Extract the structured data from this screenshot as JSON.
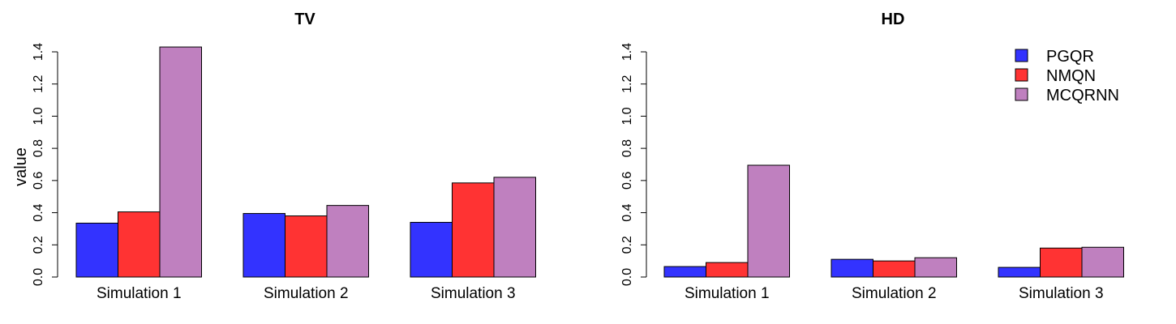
{
  "colors": {
    "PGQR": "#3333ff",
    "NMQN": "#ff3333",
    "MCQRNN": "#bf80bf"
  },
  "legend": {
    "placement": "top-right",
    "entries": [
      "PGQR",
      "NMQN",
      "MCQRNN"
    ]
  },
  "chart_data": [
    {
      "type": "bar",
      "title": "TV",
      "xlabel": "",
      "ylabel": "value",
      "ylim": [
        0,
        1.4
      ],
      "yticks": [
        "0.0",
        "0.2",
        "0.4",
        "0.6",
        "0.8",
        "1.0",
        "1.2",
        "1.4"
      ],
      "categories": [
        "Simulation 1",
        "Simulation 2",
        "Simulation 3"
      ],
      "series": [
        {
          "name": "PGQR",
          "values": [
            0.335,
            0.395,
            0.34
          ]
        },
        {
          "name": "NMQN",
          "values": [
            0.405,
            0.38,
            0.585
          ]
        },
        {
          "name": "MCQRNN",
          "values": [
            1.43,
            0.445,
            0.62
          ]
        }
      ],
      "grid": false
    },
    {
      "type": "bar",
      "title": "HD",
      "xlabel": "",
      "ylabel": "",
      "ylim": [
        0,
        1.4
      ],
      "yticks": [
        "0.0",
        "0.2",
        "0.4",
        "0.6",
        "0.8",
        "1.0",
        "1.2",
        "1.4"
      ],
      "categories": [
        "Simulation 1",
        "Simulation 2",
        "Simulation 3"
      ],
      "series": [
        {
          "name": "PGQR",
          "values": [
            0.065,
            0.11,
            0.06
          ]
        },
        {
          "name": "NMQN",
          "values": [
            0.09,
            0.1,
            0.18
          ]
        },
        {
          "name": "MCQRNN",
          "values": [
            0.695,
            0.12,
            0.185
          ]
        }
      ],
      "grid": false
    }
  ]
}
